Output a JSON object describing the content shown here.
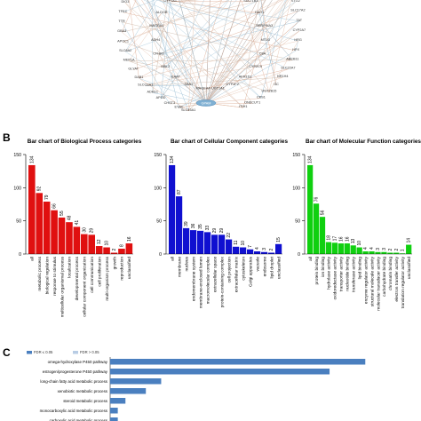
{
  "panels": {
    "b_letter": "B",
    "c_letter": "C"
  },
  "network": {
    "nodes_left": [
      "SLC45A1",
      "EYA1",
      "CHST3",
      "APOD",
      "ADH1C",
      "SLCO2A1",
      "DAB1",
      "GLYAT",
      "MEP1A",
      "SLC6A2",
      "APOC1",
      "GBA3",
      "TTR",
      "TFEC",
      "DIO3",
      "EYA4",
      "TMPRSS2",
      "ASPG",
      "ADH1B",
      "HEPACAM",
      "CYP4A11",
      "SLC38A4",
      "SLC22A8"
    ],
    "nodes_right": [
      "CYP1A2",
      "CYP2E1",
      "CYP4A22",
      "ARG1",
      "EPB41",
      "SLC10A1",
      "CYP2B6",
      "OTC",
      "PRDM16",
      "STG2",
      "SLC17A2",
      "TAT",
      "CYP2A7",
      "HRG",
      "HPX",
      "ABCB11",
      "SLC22A7",
      "NR1H4",
      "GC",
      "UGT2B15",
      "CPS1",
      "ONECUT1",
      "ITIH1"
    ],
    "nodes_inner": [
      "CYP8B1",
      "ABCB1",
      "CYP3A4",
      "SULT1B1",
      "HAO1",
      "SERPINA3",
      "MT1G",
      "C8A",
      "CYP2C9",
      "AKR1D1",
      "CYP4F2",
      "UGT1A1",
      "MAGEA4",
      "SAA1",
      "BAAT",
      "MBL2",
      "CFHR2",
      "ADH4",
      "MAGEA1",
      "ALDOB",
      "CYP7A1",
      "HSD11B1",
      "SPP2"
    ],
    "hub_label": "GPAM"
  },
  "chart_data": [
    {
      "type": "bar",
      "title": "Bar chart of Biological Process categories",
      "color": "#e01010",
      "categories": [
        "all",
        "metabolic process",
        "biological regulation",
        "response to stimulus",
        "multicellular organismal process",
        "localization",
        "developmental process",
        "cellular component organization",
        "cell communication",
        "cell proliferation",
        "multi-organism process",
        "growth",
        "reproduction",
        "unclassified"
      ],
      "values": [
        134,
        92,
        79,
        66,
        55,
        48,
        41,
        30,
        29,
        12,
        10,
        2,
        8,
        16
      ],
      "ylim": [
        0,
        150
      ],
      "yticks": [
        0,
        50,
        100,
        150
      ],
      "grid": false
    },
    {
      "type": "bar",
      "title": "Bar chart of Cellular Component categories",
      "color": "#1010d0",
      "categories": [
        "all",
        "membrane",
        "nucleus",
        "endomembrane system",
        "membrane-enclosed lumen",
        "macromolecular complex",
        "extracellular space",
        "protein-containing complex",
        "cell projection",
        "extracellular matrix",
        "cytoskeleton",
        "Golgi apparatus",
        "vacuole",
        "endosome",
        "lipid droplet",
        "unclassified"
      ],
      "values": [
        134,
        87,
        39,
        36,
        35,
        33,
        29,
        29,
        22,
        11,
        10,
        7,
        4,
        3,
        2,
        15
      ],
      "ylim": [
        0,
        150
      ],
      "yticks": [
        0,
        50,
        100,
        150
      ],
      "grid": false
    },
    {
      "type": "bar",
      "title": "Bar chart of Molecular Function categories",
      "color": "#10d010",
      "categories": [
        "all",
        "protein binding",
        "ion binding",
        "hydrolase activity",
        "oxidoreductase activity",
        "transporter activity",
        "nucleotide binding",
        "transferase activity",
        "lipid binding",
        "enzyme regulator activity",
        "structural molecule activity",
        "molecular transducer activity",
        "carbohydrate binding",
        "chromatin binding",
        "electron transfer activity",
        "translation regulator activity",
        "unclassified"
      ],
      "values": [
        134,
        76,
        56,
        18,
        17,
        16,
        16,
        13,
        10,
        4,
        4,
        3,
        3,
        2,
        2,
        1,
        14
      ],
      "ylim": [
        0,
        150
      ],
      "yticks": [
        0,
        50,
        100,
        150
      ],
      "grid": false
    },
    {
      "type": "bar",
      "orientation": "horizontal",
      "legend": [
        {
          "label": "FDR ≤ 0.05",
          "color": "#4a7fbf"
        },
        {
          "label": "FDR > 0.05",
          "color": "#b8cce4"
        }
      ],
      "legend_position": "top-left",
      "color": "#4a7fbf",
      "categories": [
        "omega-hydroxylase P450 pathway",
        "estrogen/progesterone P450 pathway",
        "long-chain fatty acid metabolic process",
        "xenobiotic metabolic process",
        "steroid metabolic process",
        "monocarboxylic acid metabolic process",
        "carboxylic acid metabolic process"
      ],
      "values": [
        1.0,
        0.86,
        0.2,
        0.14,
        0.06,
        0.03,
        0.03
      ],
      "xlim": [
        0,
        1.1
      ],
      "grid": false
    }
  ]
}
